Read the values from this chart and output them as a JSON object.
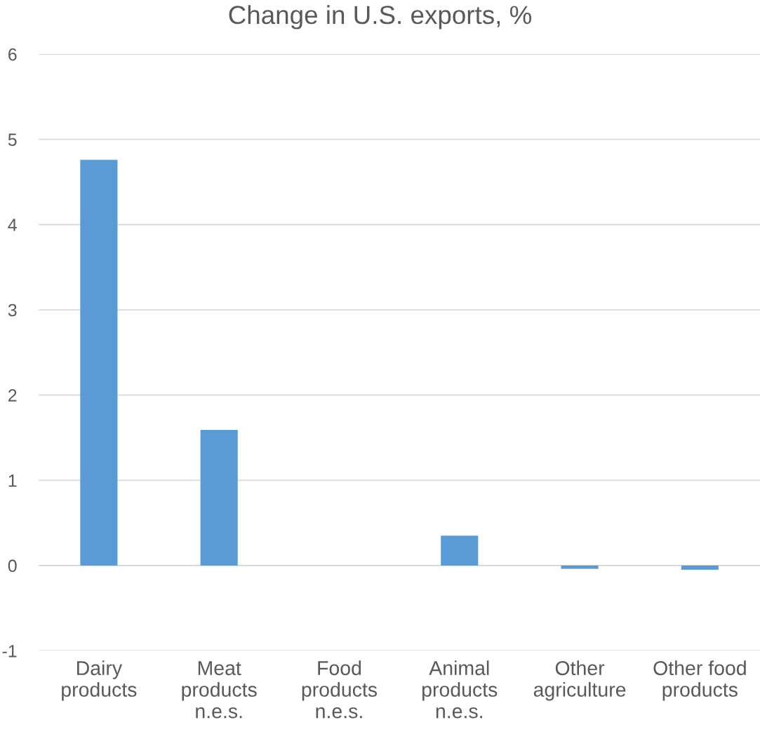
{
  "chart_data": {
    "type": "bar",
    "title": "Change in U.S. exports, %",
    "categories": [
      "Dairy\nproducts",
      "Meat\nproducts\nn.e.s.",
      "Food\nproducts\nn.e.s.",
      "Animal\nproducts\nn.e.s.",
      "Other\nagriculture",
      "Other food\nproducts"
    ],
    "values": [
      4.76,
      1.59,
      0,
      0.35,
      -0.04,
      -0.05
    ],
    "color": "#5b9bd5",
    "ylim": [
      -1,
      6
    ],
    "yticks": [
      {
        "value": -1,
        "label": "-1"
      },
      0,
      1,
      2,
      3,
      4,
      5,
      6
    ],
    "grid": "y"
  }
}
